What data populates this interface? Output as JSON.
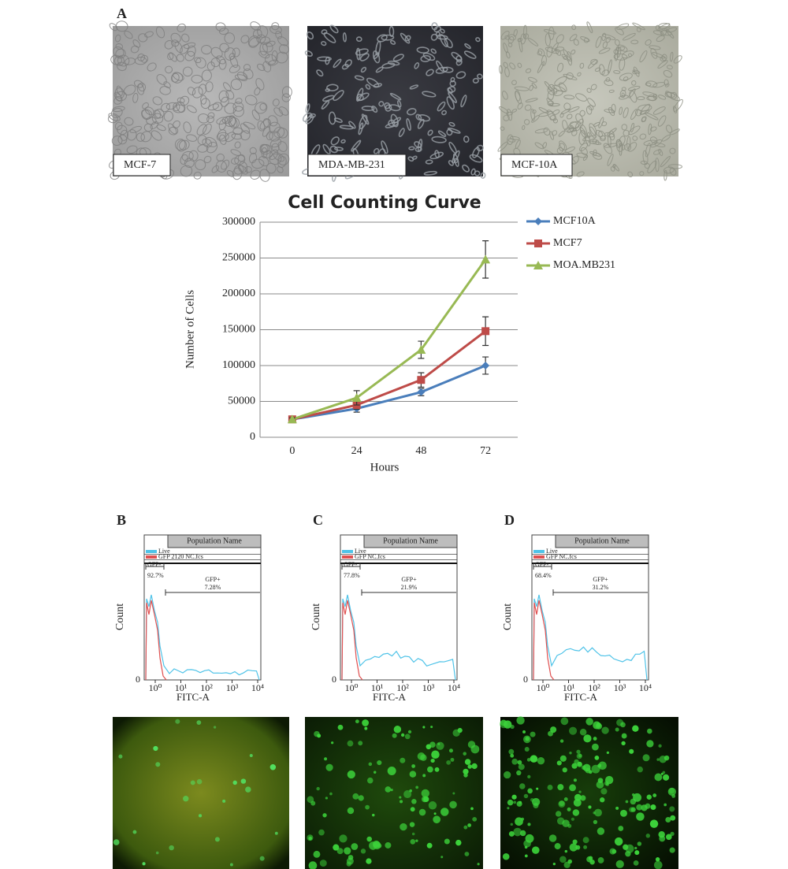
{
  "micrographs": {
    "panel": "A",
    "items": [
      {
        "label": "MCF-7"
      },
      {
        "label": "MDA-MB-231"
      },
      {
        "label": "MCF-10A"
      }
    ]
  },
  "chart_data": {
    "type": "line",
    "title": "Cell Counting Curve",
    "x_label": "Hours",
    "y_label": "Number of Cells",
    "categories": [
      "0",
      "24",
      "48",
      "72"
    ],
    "series": [
      {
        "name": "MCF10A",
        "color": "#4a7ebb",
        "marker": "diamond",
        "values": [
          25000,
          40000,
          63000,
          100000
        ],
        "errors": [
          3000,
          5000,
          5000,
          12000
        ]
      },
      {
        "name": "MCF7",
        "color": "#be4b48",
        "marker": "square",
        "values": [
          25000,
          45000,
          80000,
          148000
        ],
        "errors": [
          2000,
          6000,
          10000,
          20000
        ]
      },
      {
        "name": "MOA.MB231",
        "color": "#98b954",
        "marker": "triangle",
        "values": [
          25000,
          55000,
          122000,
          248000
        ],
        "errors": [
          2000,
          10000,
          12000,
          26000
        ]
      }
    ],
    "ylim": [
      0,
      300000
    ],
    "yticks": [
      0,
      50000,
      100000,
      150000,
      200000,
      250000,
      300000
    ],
    "grid": true,
    "legend": "right"
  },
  "flow": {
    "header": "Population Name",
    "y_label": "Count",
    "x_label": "FITC-A",
    "y_zero": "0",
    "xticks": [
      "10⁰",
      "10¹",
      "10²",
      "10³",
      "10⁴"
    ],
    "gfp_minus": "GFP-",
    "gfp_plus": "GFP+",
    "panels": [
      {
        "panel": "B",
        "gates": [
          "Live",
          "GFP 2120 NC.fcs"
        ],
        "gfp_minus_pct": "92.7%",
        "gfp_plus_pct": "7.28%"
      },
      {
        "panel": "C",
        "gates": [
          "Live",
          "GFP NC.fcs"
        ],
        "gfp_minus_pct": "77.8%",
        "gfp_plus_pct": "21.9%"
      },
      {
        "panel": "D",
        "gates": [
          "Live",
          "GFP NC.fcs"
        ],
        "gfp_minus_pct": "68.4%",
        "gfp_plus_pct": "31.2%"
      }
    ]
  }
}
